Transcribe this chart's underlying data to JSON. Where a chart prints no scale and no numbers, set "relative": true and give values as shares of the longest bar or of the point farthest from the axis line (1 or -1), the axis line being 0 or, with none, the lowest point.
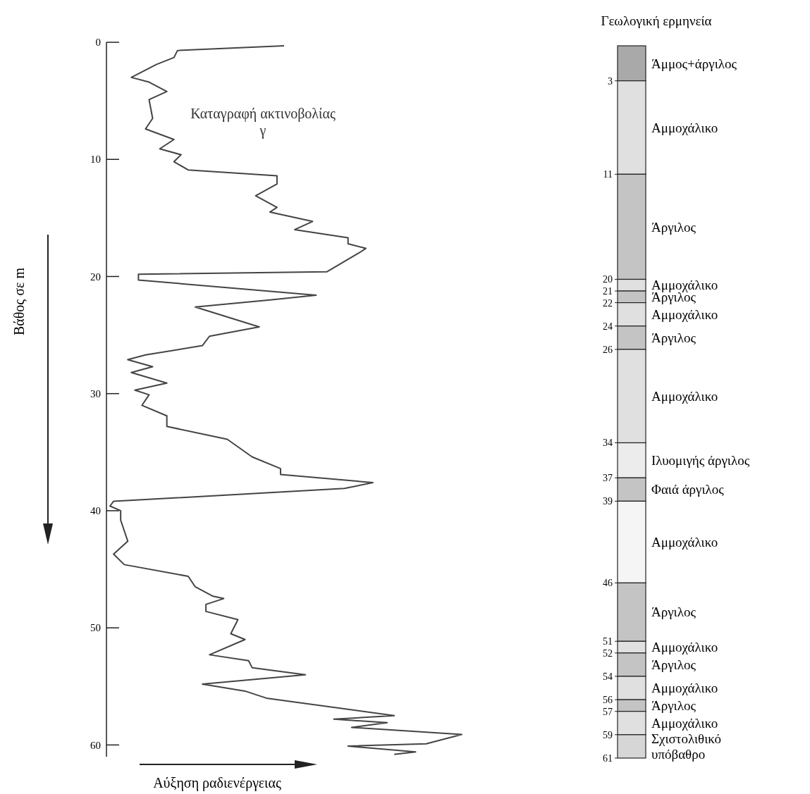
{
  "chart_data": [
    {
      "type": "line",
      "orientation": "horizontal",
      "relative": true,
      "xlabel": "Αύξηση ραδιενέργειας",
      "ylabel": "Βάθος σε m",
      "ylim": [
        61,
        0
      ],
      "yticks": [
        0,
        10,
        20,
        30,
        40,
        50,
        60
      ],
      "marker": "none",
      "line_style": "solid",
      "annotations": [
        "Καταγραφή ακτινοβολίας γ"
      ],
      "series": [
        {
          "color": "#444444",
          "x": [
            0.3,
            0.7,
            1.3,
            1.9,
            3.0,
            3.4,
            4.2,
            4.9,
            6.5,
            7.4,
            8.3,
            9.1,
            9.6,
            10.2,
            10.9,
            11.4,
            12.1,
            13.1,
            14.1,
            14.5,
            15.3,
            16.0,
            16.7,
            17.2,
            17.6,
            18.0,
            19.6,
            19.8,
            20.3,
            21.6,
            22.0,
            22.6,
            24.3,
            25.1,
            25.9,
            26.7,
            27.1,
            27.7,
            28.2,
            29.1,
            29.7,
            30.1,
            31.0,
            31.9,
            32.8,
            33.9,
            35.4,
            36.4,
            36.9,
            37.6,
            38.1,
            39.2,
            39.6,
            40.0,
            40.8,
            42.6,
            43.7,
            44.6,
            45.6,
            46.5,
            47.3,
            47.5,
            48.0,
            48.6,
            49.3,
            50.5,
            51.0,
            52.3,
            52.8,
            53.4,
            54.0,
            54.8,
            55.4,
            56.0,
            57.5,
            57.8,
            58.1,
            58.5,
            59.1,
            59.9,
            60.1,
            60.6,
            60.8
          ],
          "values": [
            0.5,
            0.2,
            0.19,
            0.14,
            0.07,
            0.12,
            0.17,
            0.12,
            0.13,
            0.11,
            0.19,
            0.15,
            0.21,
            0.19,
            0.23,
            0.48,
            0.48,
            0.42,
            0.48,
            0.46,
            0.58,
            0.53,
            0.68,
            0.68,
            0.73,
            0.71,
            0.62,
            0.09,
            0.09,
            0.59,
            0.46,
            0.25,
            0.43,
            0.29,
            0.27,
            0.11,
            0.06,
            0.13,
            0.07,
            0.17,
            0.08,
            0.12,
            0.1,
            0.17,
            0.17,
            0.34,
            0.41,
            0.49,
            0.49,
            0.75,
            0.67,
            0.02,
            0.01,
            0.04,
            0.04,
            0.06,
            0.02,
            0.05,
            0.23,
            0.25,
            0.3,
            0.33,
            0.28,
            0.28,
            0.37,
            0.35,
            0.39,
            0.29,
            0.4,
            0.41,
            0.56,
            0.27,
            0.39,
            0.45,
            0.81,
            0.64,
            0.79,
            0.69,
            1.0,
            0.9,
            0.68,
            0.87,
            0.81
          ]
        }
      ]
    },
    {
      "type": "bar",
      "title": "Γεωλογική ερμηνεία",
      "stacked": true,
      "categories": [
        null
      ],
      "ylim": [
        61,
        0
      ],
      "yticks": [
        3,
        11,
        20,
        21,
        22,
        24,
        26,
        34,
        37,
        39,
        46,
        51,
        52,
        54,
        56,
        57,
        59,
        61
      ],
      "tick_labels": "y",
      "legend": "right",
      "series": [
        {
          "name": "Άμμος+άργιλος",
          "color": "#a9a9a9",
          "values": [
            3
          ]
        },
        {
          "name": "Αμμοχάλικο",
          "color": "#e0e0e0",
          "values": [
            8
          ]
        },
        {
          "name": "Άργιλος",
          "color": "#c4c4c4",
          "values": [
            9
          ]
        },
        {
          "name": "Αμμοχάλικο",
          "color": "#e0e0e0",
          "values": [
            1
          ]
        },
        {
          "name": "Άργιλος",
          "color": "#c4c4c4",
          "values": [
            1
          ]
        },
        {
          "name": "Αμμοχάλικο",
          "color": "#e0e0e0",
          "values": [
            2
          ]
        },
        {
          "name": "Άργιλος",
          "color": "#c4c4c4",
          "values": [
            2
          ]
        },
        {
          "name": "Αμμοχάλικο",
          "color": "#e0e0e0",
          "values": [
            8
          ]
        },
        {
          "name": "Ιλυομιγής άργιλος",
          "color": "#ececec",
          "values": [
            3
          ]
        },
        {
          "name": "Φαιά άργιλος",
          "color": "#c4c4c4",
          "values": [
            2
          ]
        },
        {
          "name": "Αμμοχάλικο",
          "color": "#f5f5f5",
          "values": [
            7
          ]
        },
        {
          "name": "Άργιλος",
          "color": "#c4c4c4",
          "values": [
            5
          ]
        },
        {
          "name": "Αμμοχάλικο",
          "color": "#e0e0e0",
          "values": [
            1
          ]
        },
        {
          "name": "Άργιλος",
          "color": "#c4c4c4",
          "values": [
            2
          ]
        },
        {
          "name": "Αμμοχάλικο",
          "color": "#e0e0e0",
          "values": [
            2
          ]
        },
        {
          "name": "Άργιλος",
          "color": "#c4c4c4",
          "values": [
            1
          ]
        },
        {
          "name": "Αμμοχάλικο",
          "color": "#e0e0e0",
          "values": [
            2
          ]
        },
        {
          "name": "Σχιστολιθικό υπόβαθρο",
          "color": "#d6d6d6",
          "values": [
            2
          ]
        }
      ]
    }
  ]
}
